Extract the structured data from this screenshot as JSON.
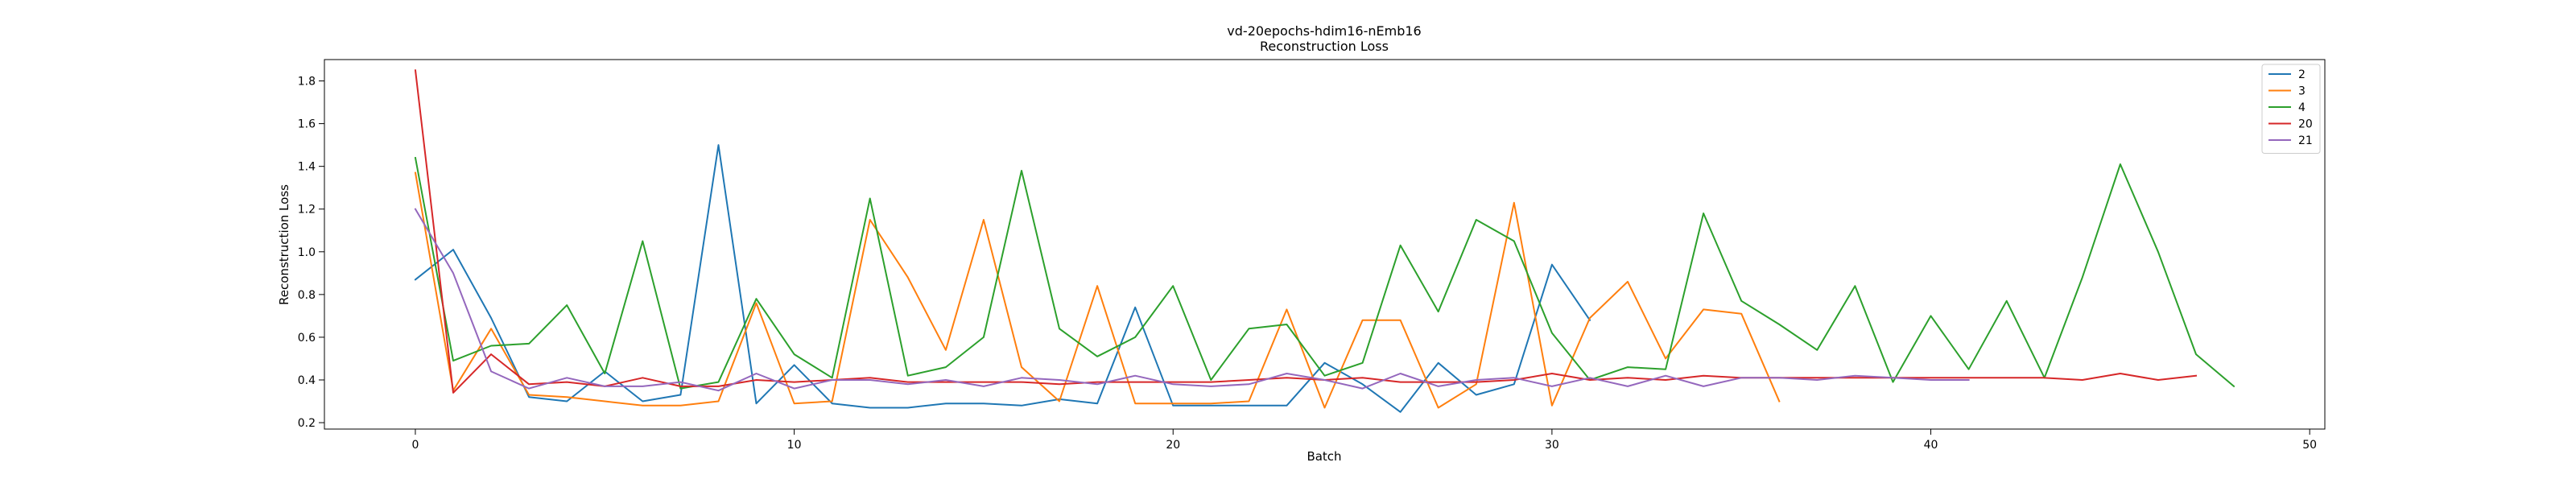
{
  "chart_data": {
    "type": "line",
    "title": "vd-20epochs-hdim16-nEmb16",
    "subtitle": "Reconstruction Loss",
    "xlabel": "Batch",
    "ylabel": "Reconstruction Loss",
    "xlim": [
      -2.4,
      50.4
    ],
    "ylim": [
      0.17,
      1.9
    ],
    "x_ticks": [
      0,
      10,
      20,
      30,
      40,
      50
    ],
    "y_ticks": [
      0.2,
      0.4,
      0.6,
      0.8,
      1.0,
      1.2,
      1.4,
      1.6,
      1.8
    ],
    "grid": false,
    "legend_position": "top-right",
    "series": [
      {
        "name": "2",
        "color": "#1f77b4",
        "x": [
          0,
          1,
          2,
          3,
          4,
          5,
          6,
          7,
          8,
          9,
          10,
          11,
          12,
          13,
          14,
          15,
          16,
          17,
          18,
          19,
          20,
          21,
          22,
          23,
          24,
          25,
          26,
          27,
          28,
          29,
          30,
          31
        ],
        "values": [
          0.87,
          1.01,
          0.69,
          0.32,
          0.3,
          0.44,
          0.3,
          0.33,
          1.5,
          0.29,
          0.47,
          0.29,
          0.27,
          0.27,
          0.29,
          0.29,
          0.28,
          0.31,
          0.29,
          0.74,
          0.28,
          0.28,
          0.28,
          0.28,
          0.48,
          0.38,
          0.25,
          0.48,
          0.33,
          0.38,
          0.94,
          0.68
        ]
      },
      {
        "name": "3",
        "color": "#ff7f0e",
        "x": [
          0,
          1,
          2,
          3,
          4,
          5,
          6,
          7,
          8,
          9,
          10,
          11,
          12,
          13,
          14,
          15,
          16,
          17,
          18,
          19,
          20,
          21,
          22,
          23,
          24,
          25,
          26,
          27,
          28,
          29,
          30,
          31,
          32,
          33,
          34,
          35,
          36
        ],
        "values": [
          1.37,
          0.35,
          0.64,
          0.33,
          0.32,
          0.3,
          0.28,
          0.28,
          0.3,
          0.76,
          0.29,
          0.3,
          1.15,
          0.88,
          0.54,
          1.15,
          0.46,
          0.3,
          0.84,
          0.29,
          0.29,
          0.29,
          0.3,
          0.73,
          0.27,
          0.68,
          0.68,
          0.27,
          0.38,
          1.23,
          0.28,
          0.69,
          0.86,
          0.5,
          0.73,
          0.71,
          0.3
        ]
      },
      {
        "name": "4",
        "color": "#2ca02c",
        "x": [
          0,
          1,
          2,
          3,
          4,
          5,
          6,
          7,
          8,
          9,
          10,
          11,
          12,
          13,
          14,
          15,
          16,
          17,
          18,
          19,
          20,
          21,
          22,
          23,
          24,
          25,
          26,
          27,
          28,
          29,
          30,
          31,
          32,
          33,
          34,
          35,
          36,
          37,
          38,
          39,
          40,
          41,
          42,
          43,
          44,
          45,
          46,
          47,
          48
        ],
        "values": [
          1.44,
          0.49,
          0.56,
          0.57,
          0.75,
          0.43,
          1.05,
          0.36,
          0.39,
          0.78,
          0.52,
          0.41,
          1.25,
          0.42,
          0.46,
          0.6,
          1.38,
          0.64,
          0.51,
          0.6,
          0.84,
          0.4,
          0.64,
          0.66,
          0.42,
          0.48,
          1.03,
          0.72,
          1.15,
          1.05,
          0.62,
          0.4,
          0.46,
          0.45,
          1.18,
          0.77,
          0.66,
          0.54,
          0.84,
          0.39,
          0.7,
          0.45,
          0.77,
          0.41,
          0.88,
          1.41,
          1.0,
          0.52,
          0.37
        ]
      },
      {
        "name": "20",
        "color": "#d62728",
        "x": [
          0,
          1,
          2,
          3,
          4,
          5,
          6,
          7,
          8,
          9,
          10,
          11,
          12,
          13,
          14,
          15,
          16,
          17,
          18,
          19,
          20,
          21,
          22,
          23,
          24,
          25,
          26,
          27,
          28,
          29,
          30,
          31,
          32,
          33,
          34,
          35,
          36,
          37,
          38,
          39,
          40,
          41,
          42,
          43,
          44,
          45,
          46,
          47
        ],
        "values": [
          1.85,
          0.34,
          0.52,
          0.38,
          0.39,
          0.37,
          0.41,
          0.37,
          0.37,
          0.4,
          0.39,
          0.4,
          0.41,
          0.39,
          0.39,
          0.39,
          0.39,
          0.38,
          0.39,
          0.39,
          0.39,
          0.39,
          0.4,
          0.41,
          0.4,
          0.41,
          0.39,
          0.39,
          0.39,
          0.4,
          0.43,
          0.4,
          0.41,
          0.4,
          0.42,
          0.41,
          0.41,
          0.41,
          0.41,
          0.41,
          0.41,
          0.41,
          0.41,
          0.41,
          0.4,
          0.43,
          0.4,
          0.42
        ]
      },
      {
        "name": "21",
        "color": "#9467bd",
        "x": [
          0,
          1,
          2,
          3,
          4,
          5,
          6,
          7,
          8,
          9,
          10,
          11,
          12,
          13,
          14,
          15,
          16,
          17,
          18,
          19,
          20,
          21,
          22,
          23,
          24,
          25,
          26,
          27,
          28,
          29,
          30,
          31,
          32,
          33,
          34,
          35,
          36,
          37,
          38,
          39,
          40,
          41
        ],
        "values": [
          1.2,
          0.9,
          0.44,
          0.36,
          0.41,
          0.37,
          0.37,
          0.39,
          0.35,
          0.43,
          0.36,
          0.4,
          0.4,
          0.38,
          0.4,
          0.37,
          0.41,
          0.4,
          0.38,
          0.42,
          0.38,
          0.37,
          0.38,
          0.43,
          0.4,
          0.36,
          0.43,
          0.37,
          0.4,
          0.41,
          0.37,
          0.41,
          0.37,
          0.42,
          0.37,
          0.41,
          0.41,
          0.4,
          0.42,
          0.41,
          0.4,
          0.4
        ]
      }
    ]
  }
}
